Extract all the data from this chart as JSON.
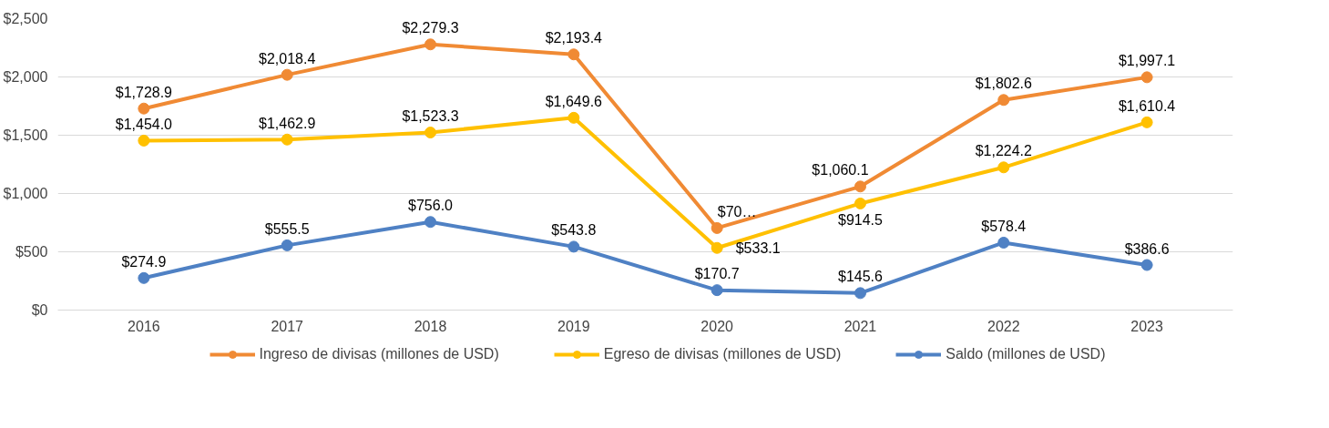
{
  "chart_data": {
    "type": "line",
    "categories": [
      "2016",
      "2017",
      "2018",
      "2019",
      "2020",
      "2021",
      "2022",
      "2023"
    ],
    "ylim": [
      0,
      2500
    ],
    "yticks": [
      {
        "value": 0,
        "label": "$0"
      },
      {
        "value": 500,
        "label": "$500"
      },
      {
        "value": 1000,
        "label": "$1,000"
      },
      {
        "value": 1500,
        "label": "$1,500"
      },
      {
        "value": 2000,
        "label": "$2,000"
      },
      {
        "value": 2500,
        "label": "$2,500"
      }
    ],
    "grid": "y",
    "legend": "bottom",
    "marker": "circle",
    "line_style": "solid",
    "series": [
      {
        "name": "Ingreso de divisas (millones de USD)",
        "color": "#f08a34",
        "values": [
          1728.9,
          2018.4,
          2279.3,
          2193.4,
          703.8,
          1060.1,
          1802.6,
          1997.1
        ],
        "value_labels": [
          "$1,728.9",
          "$2,018.4",
          "$2,279.3",
          "$2,193.4",
          "$70…",
          "$1,060.1",
          "$1,802.6",
          "$1,997.1"
        ]
      },
      {
        "name": "Egreso de divisas (millones de USD)",
        "color": "#ffc000",
        "values": [
          1454.0,
          1462.9,
          1523.3,
          1649.6,
          533.1,
          914.5,
          1224.2,
          1610.4
        ],
        "value_labels": [
          "$1,454.0",
          "$1,462.9",
          "$1,523.3",
          "$1,649.6",
          "$533.1",
          "$914.5",
          "$1,224.2",
          "$1,610.4"
        ]
      },
      {
        "name": "Saldo (millones de USD)",
        "color": "#4f81c4",
        "values": [
          274.9,
          555.5,
          756.0,
          543.8,
          170.7,
          145.6,
          578.4,
          386.6
        ],
        "value_labels": [
          "$274.9",
          "$555.5",
          "$756.0",
          "$543.8",
          "$170.7",
          "$145.6",
          "$578.4",
          "$386.6"
        ]
      }
    ]
  }
}
